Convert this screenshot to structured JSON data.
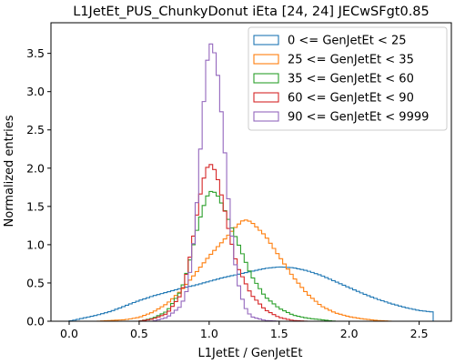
{
  "chart_data": {
    "type": "line",
    "title": "L1JetEt_PUS_ChunkyDonut iEta [24, 24] JECwSFgt0.85",
    "xlabel": "L1JetEt / GenJetEt",
    "ylabel": "Normalized entries",
    "xlim": [
      -0.13,
      2.73
    ],
    "ylim": [
      0,
      3.9
    ],
    "x_ticks": [
      0.0,
      0.5,
      1.0,
      1.5,
      2.0,
      2.5
    ],
    "x_tick_labels": [
      "0.0",
      "0.5",
      "1.0",
      "1.5",
      "2.0",
      "2.5"
    ],
    "y_ticks": [
      0.0,
      0.5,
      1.0,
      1.5,
      2.0,
      2.5,
      3.0,
      3.5
    ],
    "y_tick_labels": [
      "0.0",
      "0.5",
      "1.0",
      "1.5",
      "2.0",
      "2.5",
      "3.0",
      "3.5"
    ],
    "grid": false,
    "legend_position": "top-right",
    "histtype": "step",
    "series": [
      {
        "name": "0 <= GenJetEt < 25",
        "color": "#1f77b4",
        "points": [
          [
            0.0,
            0.0
          ],
          [
            0.1,
            0.04
          ],
          [
            0.2,
            0.08
          ],
          [
            0.3,
            0.13
          ],
          [
            0.4,
            0.2
          ],
          [
            0.5,
            0.27
          ],
          [
            0.6,
            0.33
          ],
          [
            0.7,
            0.38
          ],
          [
            0.8,
            0.43
          ],
          [
            0.9,
            0.47
          ],
          [
            1.0,
            0.52
          ],
          [
            1.1,
            0.57
          ],
          [
            1.2,
            0.61
          ],
          [
            1.3,
            0.65
          ],
          [
            1.4,
            0.69
          ],
          [
            1.5,
            0.71
          ],
          [
            1.6,
            0.7
          ],
          [
            1.7,
            0.66
          ],
          [
            1.8,
            0.6
          ],
          [
            1.9,
            0.52
          ],
          [
            2.0,
            0.44
          ],
          [
            2.1,
            0.36
          ],
          [
            2.2,
            0.29
          ],
          [
            2.3,
            0.23
          ],
          [
            2.4,
            0.18
          ],
          [
            2.5,
            0.14
          ],
          [
            2.6,
            0.12
          ]
        ]
      },
      {
        "name": "25 <= GenJetEt < 35",
        "color": "#ff7f0e",
        "points": [
          [
            0.2,
            0.0
          ],
          [
            0.4,
            0.02
          ],
          [
            0.5,
            0.05
          ],
          [
            0.6,
            0.12
          ],
          [
            0.7,
            0.23
          ],
          [
            0.8,
            0.4
          ],
          [
            0.9,
            0.62
          ],
          [
            1.0,
            0.85
          ],
          [
            1.1,
            1.05
          ],
          [
            1.2,
            1.25
          ],
          [
            1.25,
            1.33
          ],
          [
            1.3,
            1.3
          ],
          [
            1.4,
            1.12
          ],
          [
            1.5,
            0.85
          ],
          [
            1.6,
            0.58
          ],
          [
            1.7,
            0.36
          ],
          [
            1.8,
            0.2
          ],
          [
            1.9,
            0.11
          ],
          [
            2.0,
            0.06
          ],
          [
            2.1,
            0.03
          ],
          [
            2.2,
            0.01
          ],
          [
            2.3,
            0.0
          ]
        ]
      },
      {
        "name": "35 <= GenJetEt < 60",
        "color": "#2ca02c",
        "points": [
          [
            0.5,
            0.0
          ],
          [
            0.6,
            0.04
          ],
          [
            0.7,
            0.13
          ],
          [
            0.8,
            0.4
          ],
          [
            0.85,
            0.7
          ],
          [
            0.9,
            1.1
          ],
          [
            0.95,
            1.45
          ],
          [
            1.0,
            1.7
          ],
          [
            1.05,
            1.68
          ],
          [
            1.1,
            1.5
          ],
          [
            1.2,
            1.05
          ],
          [
            1.3,
            0.6
          ],
          [
            1.4,
            0.32
          ],
          [
            1.5,
            0.17
          ],
          [
            1.6,
            0.08
          ],
          [
            1.7,
            0.04
          ],
          [
            1.8,
            0.02
          ],
          [
            1.9,
            0.0
          ]
        ]
      },
      {
        "name": "60 <= GenJetEt < 90",
        "color": "#d62728",
        "points": [
          [
            0.5,
            0.0
          ],
          [
            0.6,
            0.03
          ],
          [
            0.7,
            0.1
          ],
          [
            0.8,
            0.35
          ],
          [
            0.85,
            0.7
          ],
          [
            0.9,
            1.25
          ],
          [
            0.95,
            1.8
          ],
          [
            1.0,
            2.08
          ],
          [
            1.05,
            1.95
          ],
          [
            1.1,
            1.55
          ],
          [
            1.15,
            1.1
          ],
          [
            1.2,
            0.72
          ],
          [
            1.3,
            0.35
          ],
          [
            1.4,
            0.15
          ],
          [
            1.5,
            0.05
          ],
          [
            1.6,
            0.01
          ],
          [
            1.7,
            0.0
          ]
        ]
      },
      {
        "name": "90 <= GenJetEt < 9999",
        "color": "#9467bd",
        "points": [
          [
            0.6,
            0.0
          ],
          [
            0.7,
            0.05
          ],
          [
            0.8,
            0.2
          ],
          [
            0.85,
            0.45
          ],
          [
            0.9,
            1.2
          ],
          [
            0.95,
            2.6
          ],
          [
            1.0,
            3.68
          ],
          [
            1.05,
            3.45
          ],
          [
            1.1,
            2.5
          ],
          [
            1.15,
            1.3
          ],
          [
            1.2,
            0.55
          ],
          [
            1.25,
            0.2
          ],
          [
            1.3,
            0.06
          ],
          [
            1.4,
            0.01
          ],
          [
            1.5,
            0.0
          ]
        ]
      }
    ]
  }
}
